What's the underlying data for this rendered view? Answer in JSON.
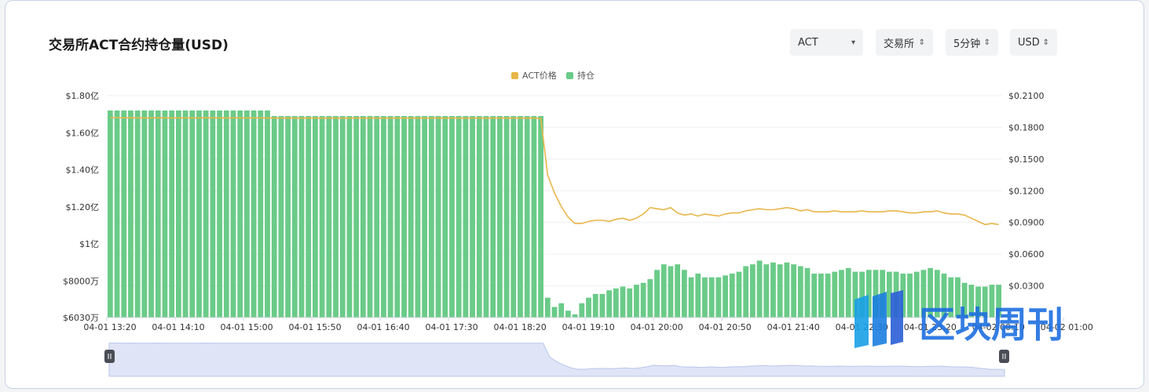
{
  "header": {
    "title": "交易所ACT合约持仓量(USD)"
  },
  "controls": [
    {
      "label": "ACT",
      "caret": "▾"
    },
    {
      "label": "交易所",
      "caret": "⇕"
    },
    {
      "label": "5分钟",
      "caret": "⇕"
    },
    {
      "label": "USD",
      "caret": "⇕"
    }
  ],
  "watermark": "区块周刊",
  "colors": {
    "bars": "#6acb88",
    "price_line": "#e8b64a",
    "navigator": "#dfe5f6",
    "navigator_line": "#b9c5ea"
  },
  "chart_data": {
    "type": "bar",
    "legend": [
      "ACT价格",
      "持仓"
    ],
    "legend_position": "top-center",
    "x_ticks": [
      "04-01 13:20",
      "04-01 14:10",
      "04-01 15:00",
      "04-01 15:50",
      "04-01 16:40",
      "04-01 17:30",
      "04-01 18:20",
      "04-01 19:10",
      "04-01 20:00",
      "04-01 20:50",
      "04-01 21:40",
      "04-01 22:30",
      "04-01 23:20",
      "04-02 00:10",
      "04-02 01:00"
    ],
    "y_left_ticks": [
      "$6030万",
      "$8000万",
      "$1亿",
      "$1.20亿",
      "$1.40亿",
      "$1.60亿",
      "$1.80亿"
    ],
    "y_left_tick_values": [
      0.603,
      0.8,
      1.0,
      1.2,
      1.4,
      1.6,
      1.8
    ],
    "y_left_range": [
      0.603,
      1.8
    ],
    "y_left_unit": "亿 USD",
    "y_right_ticks": [
      "$0.0300",
      "$0.0600",
      "$0.0900",
      "$0.1200",
      "$0.1500",
      "$0.1800",
      "$0.2100"
    ],
    "y_right_range": [
      0.0,
      0.21
    ],
    "grid": true,
    "series": [
      {
        "name": "持仓",
        "type": "bar",
        "values": [
          1.72,
          1.72,
          1.72,
          1.72,
          1.72,
          1.72,
          1.72,
          1.72,
          1.72,
          1.72,
          1.72,
          1.72,
          1.72,
          1.72,
          1.72,
          1.72,
          1.72,
          1.72,
          1.72,
          1.72,
          1.72,
          1.72,
          1.72,
          1.72,
          1.69,
          1.69,
          1.69,
          1.69,
          1.69,
          1.69,
          1.69,
          1.69,
          1.69,
          1.69,
          1.69,
          1.69,
          1.69,
          1.69,
          1.69,
          1.69,
          1.69,
          1.69,
          1.69,
          1.69,
          1.69,
          1.69,
          1.69,
          1.69,
          1.69,
          1.69,
          1.69,
          1.69,
          1.69,
          1.69,
          1.69,
          1.69,
          1.69,
          1.69,
          1.69,
          1.69,
          1.69,
          1.69,
          1.69,
          1.69,
          0.71,
          0.66,
          0.68,
          0.64,
          0.62,
          0.68,
          0.71,
          0.73,
          0.73,
          0.75,
          0.76,
          0.77,
          0.76,
          0.78,
          0.79,
          0.81,
          0.86,
          0.89,
          0.88,
          0.89,
          0.86,
          0.82,
          0.84,
          0.82,
          0.82,
          0.82,
          0.83,
          0.84,
          0.85,
          0.88,
          0.89,
          0.91,
          0.89,
          0.9,
          0.89,
          0.9,
          0.89,
          0.88,
          0.87,
          0.84,
          0.84,
          0.84,
          0.85,
          0.86,
          0.87,
          0.85,
          0.85,
          0.86,
          0.86,
          0.86,
          0.85,
          0.85,
          0.84,
          0.84,
          0.85,
          0.86,
          0.87,
          0.86,
          0.84,
          0.82,
          0.82,
          0.79,
          0.78,
          0.77,
          0.77,
          0.78,
          0.78
        ]
      },
      {
        "name": "ACT价格",
        "type": "line",
        "values": [
          0.1892,
          0.1892,
          0.189,
          0.1891,
          0.189,
          0.1889,
          0.189,
          0.1891,
          0.189,
          0.1889,
          0.189,
          0.189,
          0.1889,
          0.189,
          0.1891,
          0.189,
          0.189,
          0.1889,
          0.189,
          0.189,
          0.1889,
          0.189,
          0.189,
          0.1889,
          0.1888,
          0.1888,
          0.1889,
          0.1888,
          0.1887,
          0.1888,
          0.1888,
          0.1887,
          0.1888,
          0.1888,
          0.1887,
          0.1888,
          0.1888,
          0.1887,
          0.1888,
          0.1888,
          0.1887,
          0.1888,
          0.1888,
          0.1887,
          0.1888,
          0.1888,
          0.1887,
          0.1888,
          0.1888,
          0.1887,
          0.1888,
          0.1888,
          0.1887,
          0.1888,
          0.1888,
          0.1887,
          0.1888,
          0.1888,
          0.1887,
          0.1888,
          0.1888,
          0.1887,
          0.1888,
          0.1885,
          0.135,
          0.118,
          0.105,
          0.095,
          0.089,
          0.089,
          0.091,
          0.092,
          0.092,
          0.091,
          0.093,
          0.094,
          0.092,
          0.094,
          0.098,
          0.104,
          0.103,
          0.102,
          0.104,
          0.099,
          0.097,
          0.098,
          0.096,
          0.098,
          0.097,
          0.096,
          0.098,
          0.099,
          0.099,
          0.101,
          0.102,
          0.103,
          0.102,
          0.102,
          0.103,
          0.104,
          0.103,
          0.101,
          0.102,
          0.1,
          0.1,
          0.1,
          0.101,
          0.1,
          0.1,
          0.1,
          0.101,
          0.1,
          0.1,
          0.1,
          0.101,
          0.101,
          0.1,
          0.099,
          0.099,
          0.1,
          0.1,
          0.101,
          0.099,
          0.098,
          0.098,
          0.097,
          0.094,
          0.091,
          0.088,
          0.089,
          0.088
        ]
      }
    ]
  }
}
